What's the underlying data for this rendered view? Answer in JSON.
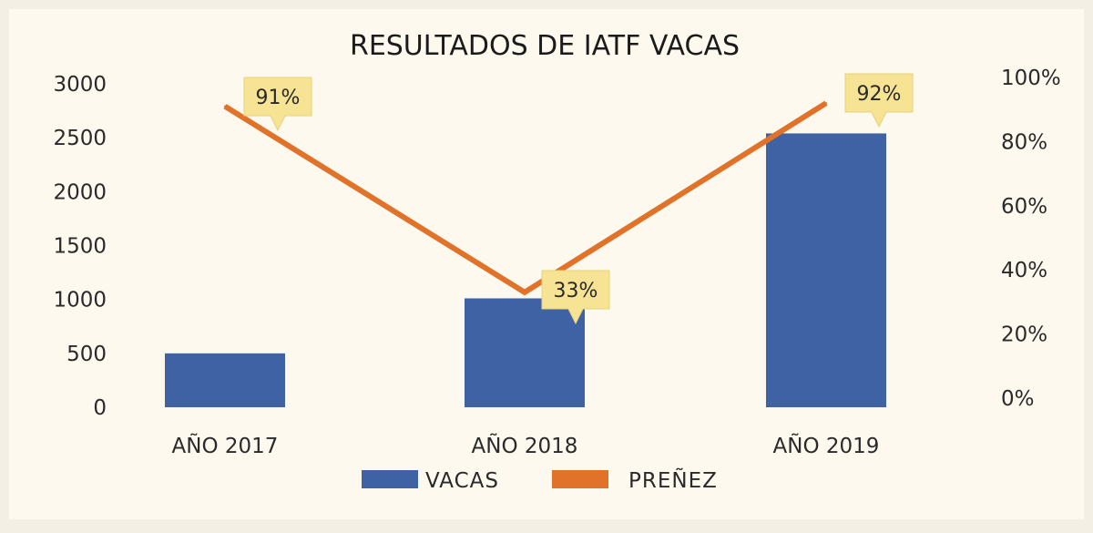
{
  "colors": {
    "background": "#f3efe4",
    "plot_area": "#fdf9ee",
    "bar": "#3f62a4",
    "line": "#e0722a",
    "callout": "#f6e393"
  },
  "chart_data": {
    "type": "bar",
    "title": "RESULTADOS DE IATF VACAS",
    "categories": [
      "AÑO 2017",
      "AÑO 2018",
      "AÑO 2019"
    ],
    "series": [
      {
        "name": "VACAS",
        "type": "bar",
        "axis": "left",
        "values": [
          500,
          1010,
          2540
        ]
      },
      {
        "name": "PREÑEZ",
        "type": "line",
        "axis": "right",
        "values": [
          0.91,
          0.33,
          0.92
        ]
      }
    ],
    "data_labels": [
      "91%",
      "33%",
      "92%"
    ],
    "y_left": {
      "lim": [
        0,
        3000
      ],
      "ticks": [
        "0",
        "500",
        "1000",
        "1500",
        "2000",
        "2500",
        "3000"
      ]
    },
    "y_right": {
      "lim": [
        0,
        1
      ],
      "ticks": [
        "0%",
        "20%",
        "40%",
        "60%",
        "80%",
        "100%"
      ]
    },
    "grid": false,
    "legend_position": "bottom"
  }
}
